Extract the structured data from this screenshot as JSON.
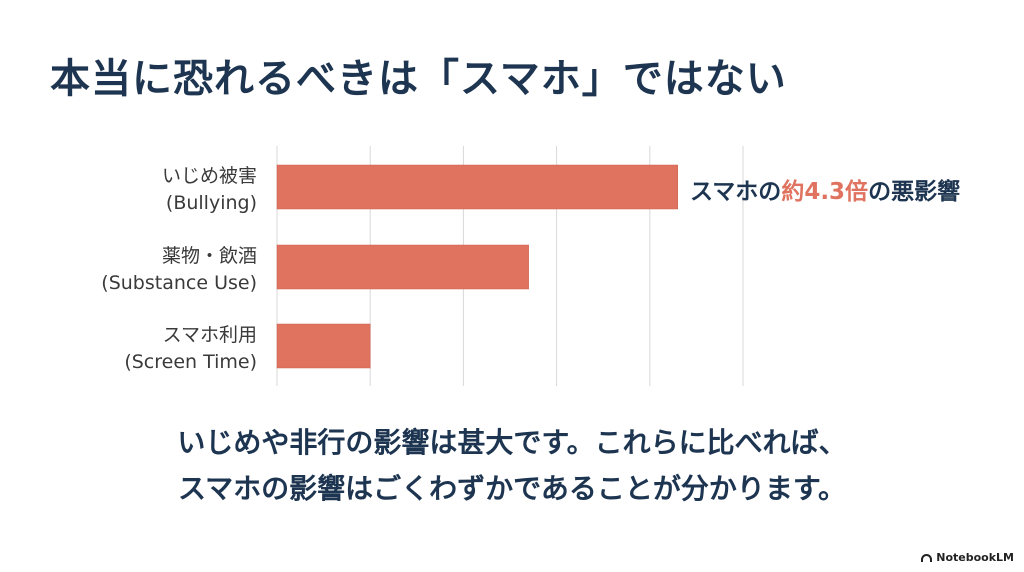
{
  "slide": {
    "title": "本当に恐れるべきは「スマホ」ではない",
    "caption_line1": "いじめや非行の影響は甚大です。これらに比べれば、",
    "caption_line2": "スマホの影響はごくわずかであることが分かります。",
    "brand": "NotebookLM",
    "brand_icon": "notebooklm-logo-icon"
  },
  "callout": {
    "prefix": "スマホの",
    "highlight": "約4.3倍",
    "suffix": "の悪影響",
    "highlight_color": "#e0735f"
  },
  "chart_data": {
    "type": "bar",
    "orientation": "horizontal",
    "categories": [
      {
        "line1": "いじめ被害",
        "line2": "(Bullying)"
      },
      {
        "line1": "薬物・飲酒",
        "line2": "(Substance Use)"
      },
      {
        "line1": "スマホ利用",
        "line2": "(Screen Time)"
      }
    ],
    "values": [
      4.3,
      2.7,
      1.0
    ],
    "xlim": [
      0,
      5
    ],
    "gridlines": "vertical",
    "bar_color": "#e0735f",
    "axis_labels_shown": false
  }
}
